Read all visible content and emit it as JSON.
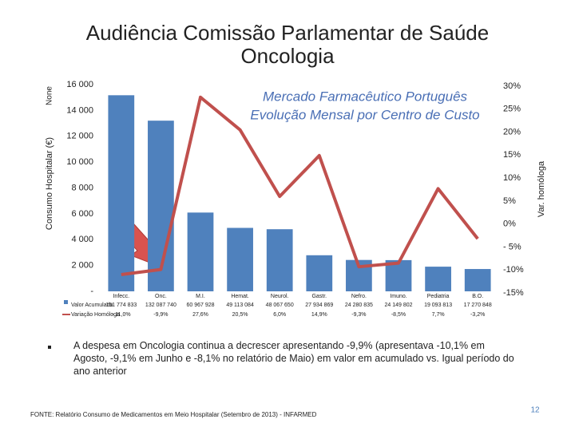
{
  "slide": {
    "title": [
      "Audiência Comissão Parlamentar de Saúde",
      "Oncologia"
    ],
    "bullet": "A despesa em Oncologia continua a decrescer apresentando  -9,9% (apresentava -10,1% em Agosto, -9,1% em Junho e -8,1% no relatório de Maio) em valor em acumulado vs. Igual período do ano anterior",
    "footnote": "FONTE: Relatório Consumo de Medicamentos em Meio Hospitalar (Setembro de 2013) - INFARMED",
    "page": "12"
  },
  "chart_data": {
    "type": "bar",
    "title": [
      "Mercado Farmacêutico Português",
      "Evolução Mensal por Centro de Custo"
    ],
    "y_label": "Consumo Hospitalar (€)",
    "y_unit_label": "None",
    "y2_label": "Var. homóloga",
    "categories": [
      "Infecc.",
      "Onc.",
      "M.I.",
      "Hemat.",
      "Neurol.",
      "Gastr.",
      "Nefro.",
      "Imuno.",
      "Pediatria",
      "B.O."
    ],
    "series": [
      {
        "name": "Valor Acumulado",
        "type": "bar",
        "color": "#4f81bd",
        "values": [
          15177,
          13209,
          6097,
          4911,
          4807,
          2793,
          2428,
          2415,
          1909,
          1727
        ],
        "table_labels": [
          "151 774 833",
          "132 087 740",
          "60 967 928",
          "49 113 084",
          "48 067 650",
          "27 934 869",
          "24 280 835",
          "24 149 802",
          "19 093 813",
          "17 270 848"
        ]
      },
      {
        "name": "Variação Homóloga",
        "type": "line",
        "color": "#c0504d",
        "axis": "y2",
        "values": [
          -11.0,
          -9.9,
          27.6,
          20.5,
          6.0,
          14.9,
          -9.3,
          -8.5,
          7.7,
          -3.2
        ],
        "value_labels": [
          "- 11,0%",
          "-9,9%",
          "27,6%",
          "20,5%",
          "6,0%",
          "14,9%",
          "-9,3%",
          "-8,5%",
          "7,7%",
          "-3,2%"
        ]
      }
    ],
    "ylim": [
      0,
      16000
    ],
    "yticks": [
      {
        "value": 0,
        "label": "-"
      },
      {
        "value": 2000,
        "label": "2 000"
      },
      {
        "value": 4000,
        "label": "4 000"
      },
      {
        "value": 6000,
        "label": "6 000"
      },
      {
        "value": 8000,
        "label": "8 000"
      },
      {
        "value": 10000,
        "label": "10 000"
      },
      {
        "value": 12000,
        "label": "12 000"
      },
      {
        "value": 14000,
        "label": "14 000"
      },
      {
        "value": 16000,
        "label": "16 000"
      }
    ],
    "y2lim": [
      -15,
      30
    ],
    "y2ticks": [
      {
        "value": -15,
        "label": "-15%"
      },
      {
        "value": -10,
        "label": "-10%"
      },
      {
        "value": -5,
        "label": "- 5%"
      },
      {
        "value": 0,
        "label": "0%"
      },
      {
        "value": 5,
        "label": "5%"
      },
      {
        "value": 10,
        "label": "10%"
      },
      {
        "value": 15,
        "label": "15%"
      },
      {
        "value": 20,
        "label": "20%"
      },
      {
        "value": 25,
        "label": "25%"
      },
      {
        "value": 30,
        "label": "30%"
      }
    ],
    "grid": false
  }
}
